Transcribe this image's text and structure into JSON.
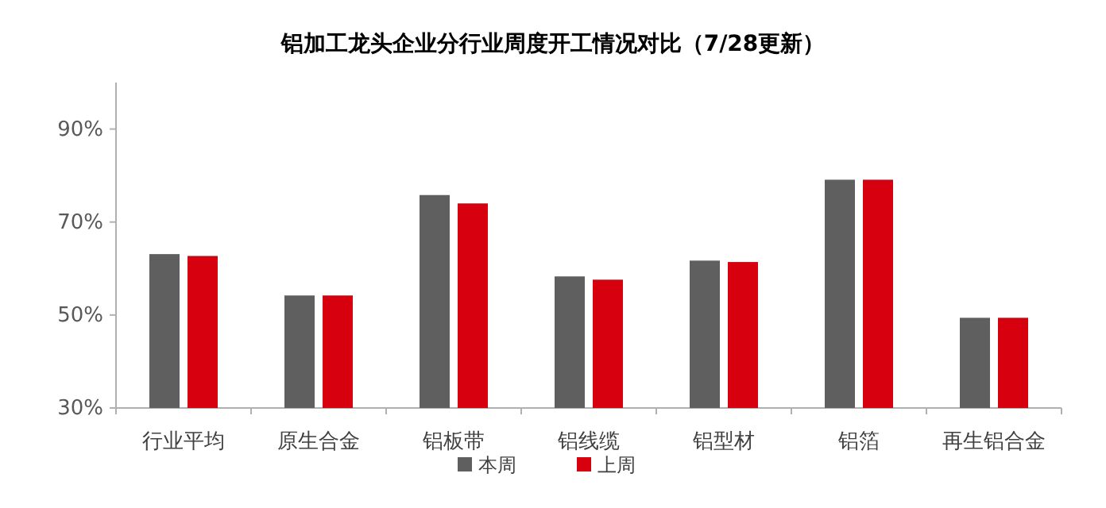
{
  "chart_data": {
    "type": "bar",
    "title": "铝加工龙头企业分行业周度开工情况对比（7/28更新）",
    "categories": [
      "行业平均",
      "原生合金",
      "铝板带",
      "铝线缆",
      "铝型材",
      "铝箔",
      "再生铝合金"
    ],
    "series": [
      {
        "name": "本周",
        "color": "#5f5f5f",
        "values": [
          63.1,
          54.2,
          75.8,
          58.3,
          61.7,
          79.1,
          49.4
        ]
      },
      {
        "name": "上周",
        "color": "#d7000f",
        "values": [
          62.7,
          54.2,
          74.0,
          57.6,
          61.4,
          79.1,
          49.4
        ]
      }
    ],
    "ylim": [
      30,
      100
    ],
    "yticks": [
      {
        "value": 30,
        "label": "30%"
      },
      {
        "value": 50,
        "label": "50%"
      },
      {
        "value": 70,
        "label": "70%"
      },
      {
        "value": 90,
        "label": "90%"
      }
    ],
    "grid": false,
    "legend": "bottom"
  }
}
